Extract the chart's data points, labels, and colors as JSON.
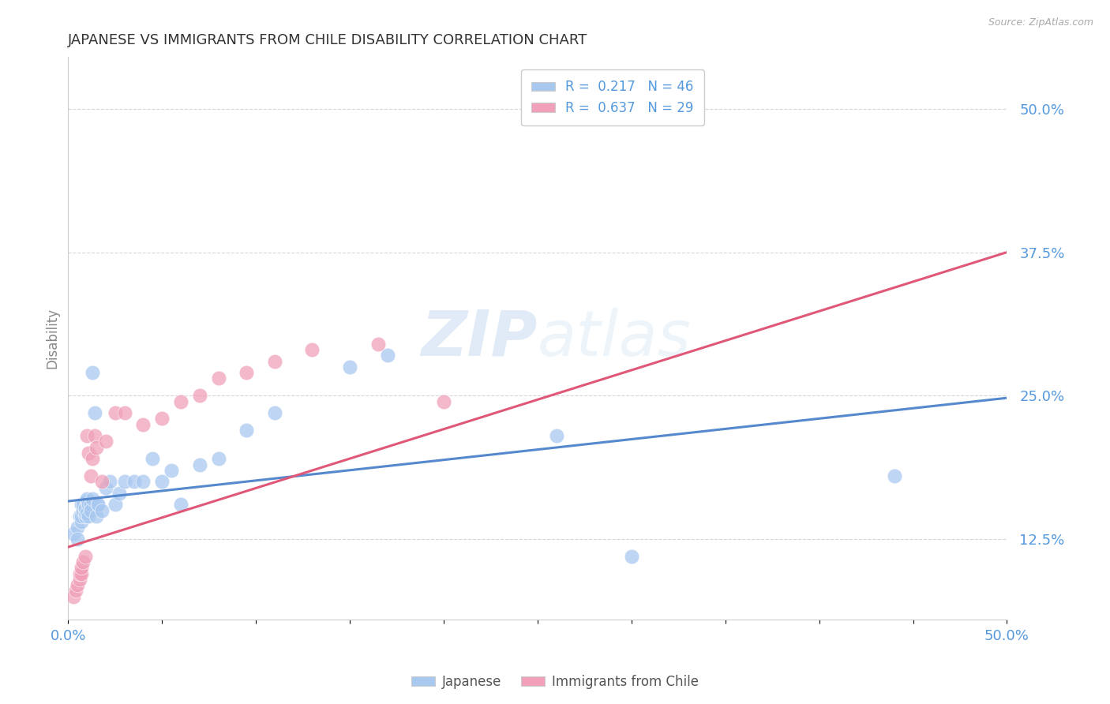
{
  "title": "JAPANESE VS IMMIGRANTS FROM CHILE DISABILITY CORRELATION CHART",
  "source": "Source: ZipAtlas.com",
  "ylabel": "Disability",
  "watermark": "ZIPatlas",
  "legend1_r": "0.217",
  "legend1_n": "46",
  "legend2_r": "0.637",
  "legend2_n": "29",
  "blue_color": "#a8c8f0",
  "pink_color": "#f0a0b8",
  "blue_line_color": "#5588cc",
  "pink_line_color": "#e05878",
  "title_color": "#333333",
  "tick_label_color": "#5599dd",
  "ylabel_color": "#888888",
  "source_color": "#aaaaaa",
  "grid_color": "#cccccc",
  "xlim": [
    0.0,
    0.5
  ],
  "ylim": [
    0.055,
    0.545
  ],
  "ytick_values": [
    0.125,
    0.25,
    0.375,
    0.5
  ],
  "ytick_labels": [
    "12.5%",
    "25.0%",
    "37.5%",
    "50.0%"
  ],
  "n_xticks": 11,
  "japanese_x": [
    0.003,
    0.005,
    0.005,
    0.006,
    0.007,
    0.007,
    0.007,
    0.008,
    0.008,
    0.009,
    0.009,
    0.009,
    0.01,
    0.01,
    0.01,
    0.011,
    0.011,
    0.012,
    0.012,
    0.013,
    0.013,
    0.014,
    0.015,
    0.016,
    0.016,
    0.018,
    0.02,
    0.022,
    0.025,
    0.027,
    0.03,
    0.035,
    0.04,
    0.045,
    0.05,
    0.055,
    0.06,
    0.07,
    0.08,
    0.095,
    0.11,
    0.15,
    0.17,
    0.26,
    0.3,
    0.44
  ],
  "japanese_y": [
    0.13,
    0.135,
    0.125,
    0.145,
    0.14,
    0.145,
    0.155,
    0.15,
    0.155,
    0.145,
    0.148,
    0.152,
    0.148,
    0.158,
    0.16,
    0.155,
    0.145,
    0.155,
    0.15,
    0.16,
    0.27,
    0.235,
    0.145,
    0.155,
    0.155,
    0.15,
    0.17,
    0.175,
    0.155,
    0.165,
    0.175,
    0.175,
    0.175,
    0.195,
    0.175,
    0.185,
    0.155,
    0.19,
    0.195,
    0.22,
    0.235,
    0.275,
    0.285,
    0.215,
    0.11,
    0.18
  ],
  "chile_x": [
    0.003,
    0.004,
    0.005,
    0.006,
    0.006,
    0.007,
    0.007,
    0.008,
    0.009,
    0.01,
    0.011,
    0.012,
    0.013,
    0.014,
    0.015,
    0.018,
    0.02,
    0.025,
    0.03,
    0.04,
    0.05,
    0.06,
    0.07,
    0.08,
    0.095,
    0.11,
    0.13,
    0.165,
    0.2
  ],
  "chile_y": [
    0.075,
    0.08,
    0.085,
    0.09,
    0.095,
    0.095,
    0.1,
    0.105,
    0.11,
    0.215,
    0.2,
    0.18,
    0.195,
    0.215,
    0.205,
    0.175,
    0.21,
    0.235,
    0.235,
    0.225,
    0.23,
    0.245,
    0.25,
    0.265,
    0.27,
    0.28,
    0.29,
    0.295,
    0.245
  ],
  "blue_trendline_x": [
    0.0,
    0.5
  ],
  "blue_trendline_y": [
    0.158,
    0.248
  ],
  "pink_trendline_x": [
    0.0,
    0.5
  ],
  "pink_trendline_y": [
    0.118,
    0.375
  ]
}
